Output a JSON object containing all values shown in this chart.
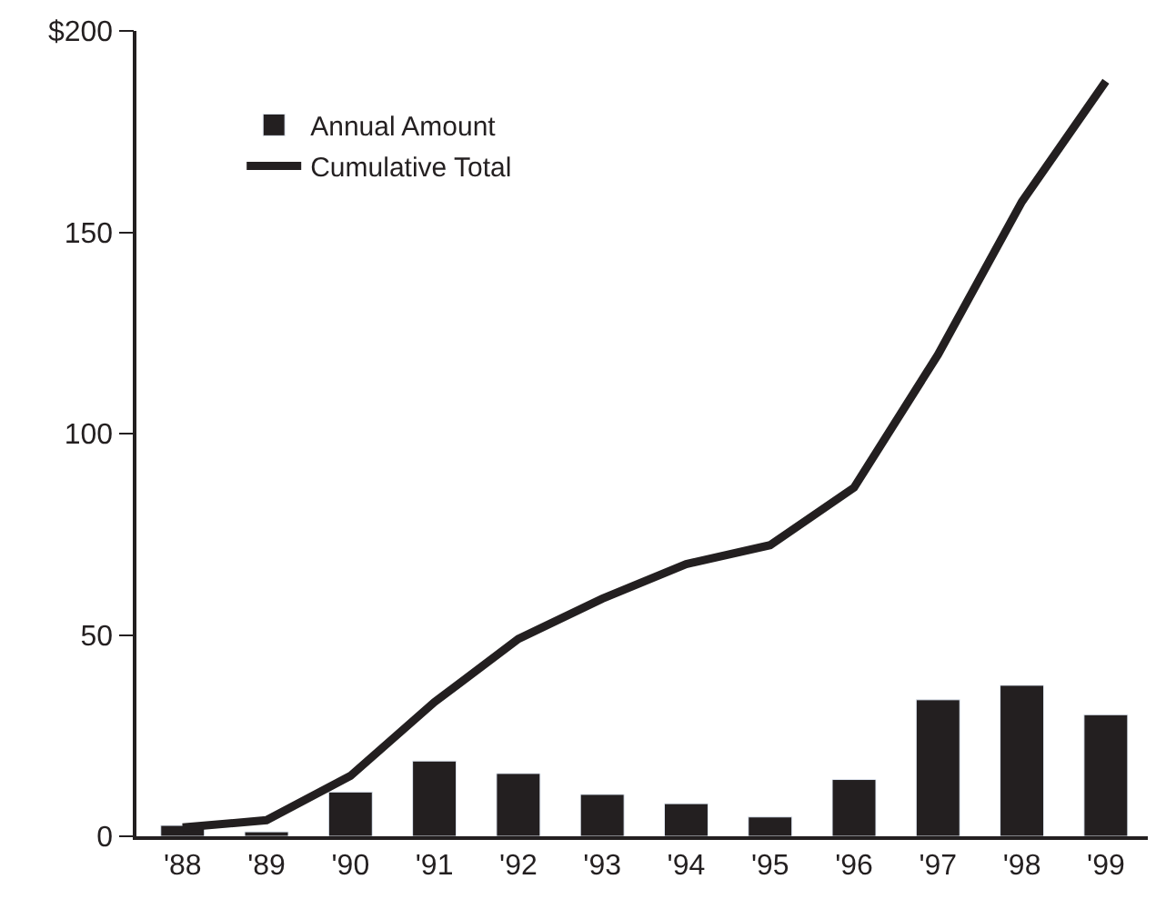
{
  "chart_data": {
    "type": "bar",
    "categories": [
      "'88",
      "'89",
      "'90",
      "'91",
      "'92",
      "'93",
      "'94",
      "'95",
      "'96",
      "'97",
      "'98",
      "'99"
    ],
    "series": [
      {
        "name": "Annual Amount",
        "color": "#231f20",
        "values": [
          2.7,
          1.1,
          11,
          18.7,
          15.6,
          10.4,
          8.1,
          4.8,
          14.1,
          33.9,
          37.5,
          30.2
        ]
      },
      {
        "name": "Cumulative Total",
        "type": "line",
        "color": "#231f20",
        "values": [
          2.2,
          4,
          15,
          33.3,
          49,
          59,
          67.6,
          72.3,
          86.6,
          119.6,
          157.6,
          187.5
        ]
      }
    ],
    "ylim": [
      0,
      200
    ],
    "yticks": [
      0,
      50,
      100,
      150,
      {
        "value": 200,
        "label": "$200"
      }
    ],
    "legend": "top left",
    "marker": "none",
    "line_style": "solid"
  }
}
